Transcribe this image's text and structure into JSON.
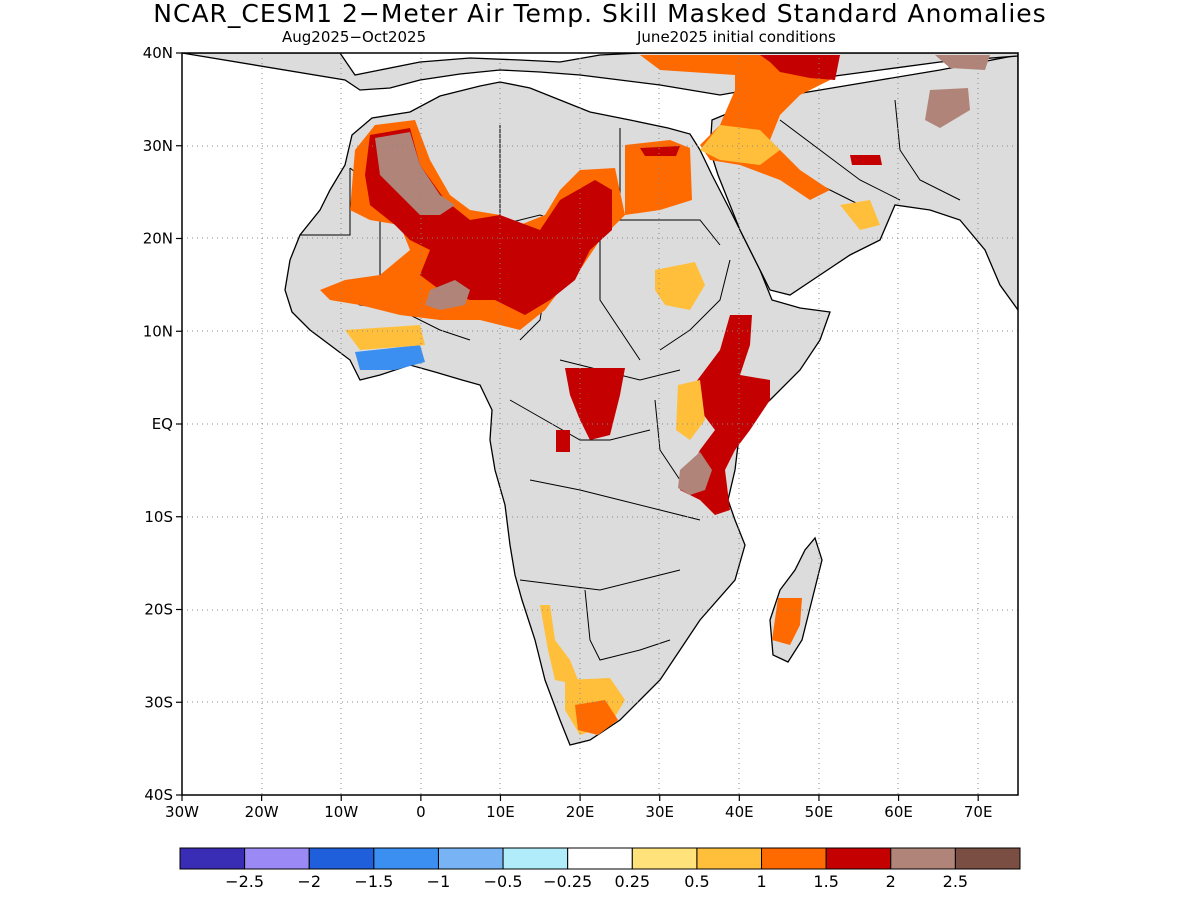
{
  "title": "NCAR_CESM1 2−Meter Air Temp. Skill Masked Standard Anomalies",
  "subtitle_left": "Aug2025−Oct2025",
  "subtitle_right": "June2025 initial conditions",
  "map": {
    "lon_range": [
      -30,
      75
    ],
    "lat_range": [
      -40,
      40
    ],
    "lat_ticks": [
      {
        "value": 40,
        "label": "40N"
      },
      {
        "value": 30,
        "label": "30N"
      },
      {
        "value": 20,
        "label": "20N"
      },
      {
        "value": 10,
        "label": "10N"
      },
      {
        "value": 0,
        "label": "EQ"
      },
      {
        "value": -10,
        "label": "10S"
      },
      {
        "value": -20,
        "label": "20S"
      },
      {
        "value": -30,
        "label": "30S"
      },
      {
        "value": -40,
        "label": "40S"
      }
    ],
    "lon_ticks": [
      {
        "value": -30,
        "label": "30W"
      },
      {
        "value": -20,
        "label": "20W"
      },
      {
        "value": -10,
        "label": "10W"
      },
      {
        "value": 0,
        "label": "0"
      },
      {
        "value": 10,
        "label": "10E"
      },
      {
        "value": 20,
        "label": "20E"
      },
      {
        "value": 30,
        "label": "30E"
      },
      {
        "value": 40,
        "label": "40E"
      },
      {
        "value": 50,
        "label": "50E"
      },
      {
        "value": 60,
        "label": "60E"
      },
      {
        "value": 70,
        "label": "70E"
      }
    ],
    "land_color": "#dcdcdc",
    "grid": true
  },
  "colorbar": {
    "colors": [
      "#3a2db5",
      "#9b8af5",
      "#1f5fdc",
      "#3a8ff0",
      "#78b4f5",
      "#b0ecfa",
      "#ffffff",
      "#ffe27a",
      "#ffbf3a",
      "#ff6a00",
      "#c40000",
      "#b08478",
      "#7a4e42"
    ],
    "labels": [
      "−2.5",
      "−2",
      "−1.5",
      "−1",
      "−0.5",
      "−0.25",
      "0.25",
      "0.5",
      "1",
      "1.5",
      "2",
      "2.5"
    ]
  }
}
